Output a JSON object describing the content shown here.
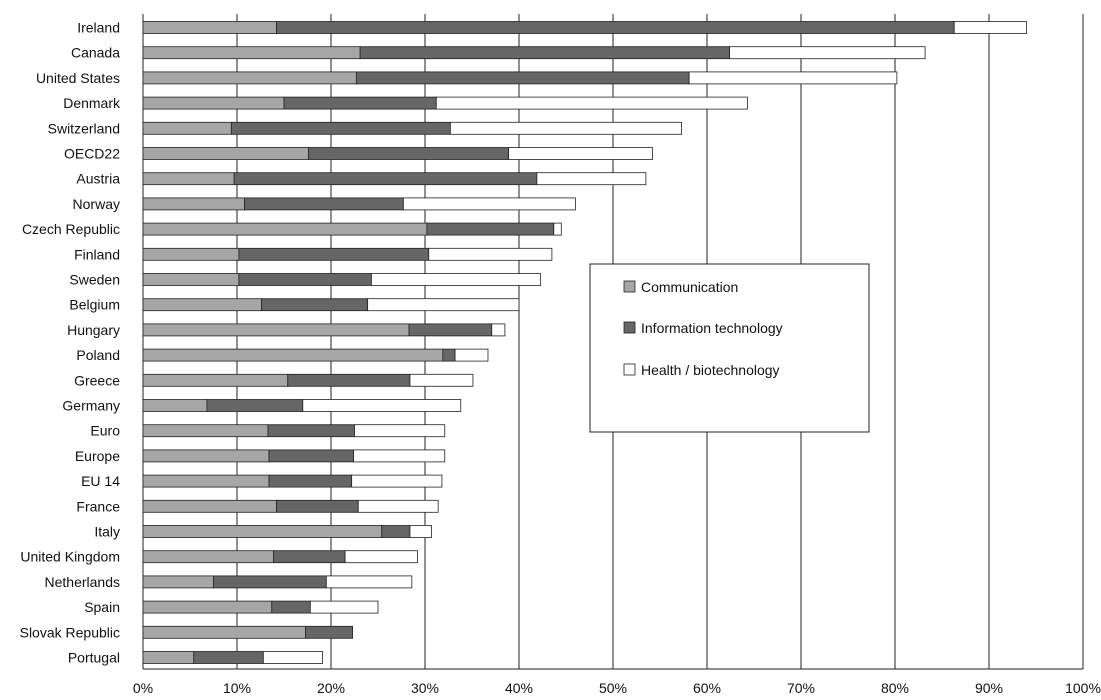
{
  "chart_data": {
    "type": "bar",
    "orientation": "horizontal",
    "stacked": true,
    "title": "",
    "xlabel": "",
    "ylabel": "",
    "xlim": [
      0,
      100
    ],
    "x_ticks": [
      "0%",
      "10%",
      "20%",
      "30%",
      "40%",
      "50%",
      "60%",
      "70%",
      "80%",
      "90%",
      "100%"
    ],
    "grid": "vertical",
    "legend_position": "center-right",
    "categories": [
      "Ireland",
      "Canada",
      "United States",
      "Denmark",
      "Switzerland",
      "OECD22",
      "Austria",
      "Norway",
      "Czech Republic",
      "Finland",
      "Sweden",
      "Belgium",
      "Hungary",
      "Poland",
      "Greece",
      "Germany",
      "Euro",
      "Europe",
      "EU 14",
      "France",
      "Italy",
      "United Kingdom",
      "Netherlands",
      "Spain",
      "Slovak Republic",
      "Portugal"
    ],
    "series": [
      {
        "name": "Communication",
        "color": "#a6a6a6",
        "values": [
          14.2,
          23.1,
          22.7,
          15.0,
          9.4,
          17.6,
          9.7,
          10.8,
          30.2,
          10.2,
          10.2,
          12.6,
          28.3,
          31.9,
          15.4,
          6.8,
          13.3,
          13.4,
          13.4,
          14.2,
          25.4,
          13.9,
          7.5,
          13.7,
          17.3,
          5.4
        ]
      },
      {
        "name": "Information technology",
        "color": "#666666",
        "values": [
          72.1,
          39.3,
          35.4,
          16.2,
          23.3,
          21.3,
          32.2,
          16.9,
          13.5,
          20.2,
          14.1,
          11.3,
          8.8,
          1.3,
          13.0,
          10.2,
          9.2,
          9.0,
          8.8,
          8.7,
          3.0,
          7.6,
          12.0,
          4.1,
          5.0,
          7.4
        ]
      },
      {
        "name": "Health / biotechnology",
        "color": "#ffffff",
        "values": [
          7.7,
          20.8,
          22.1,
          33.1,
          24.6,
          15.3,
          11.6,
          18.3,
          0.8,
          13.1,
          18.0,
          16.1,
          1.4,
          3.5,
          6.7,
          16.8,
          9.6,
          9.7,
          9.6,
          8.5,
          2.3,
          7.7,
          9.1,
          7.2,
          0,
          6.3
        ]
      }
    ]
  }
}
